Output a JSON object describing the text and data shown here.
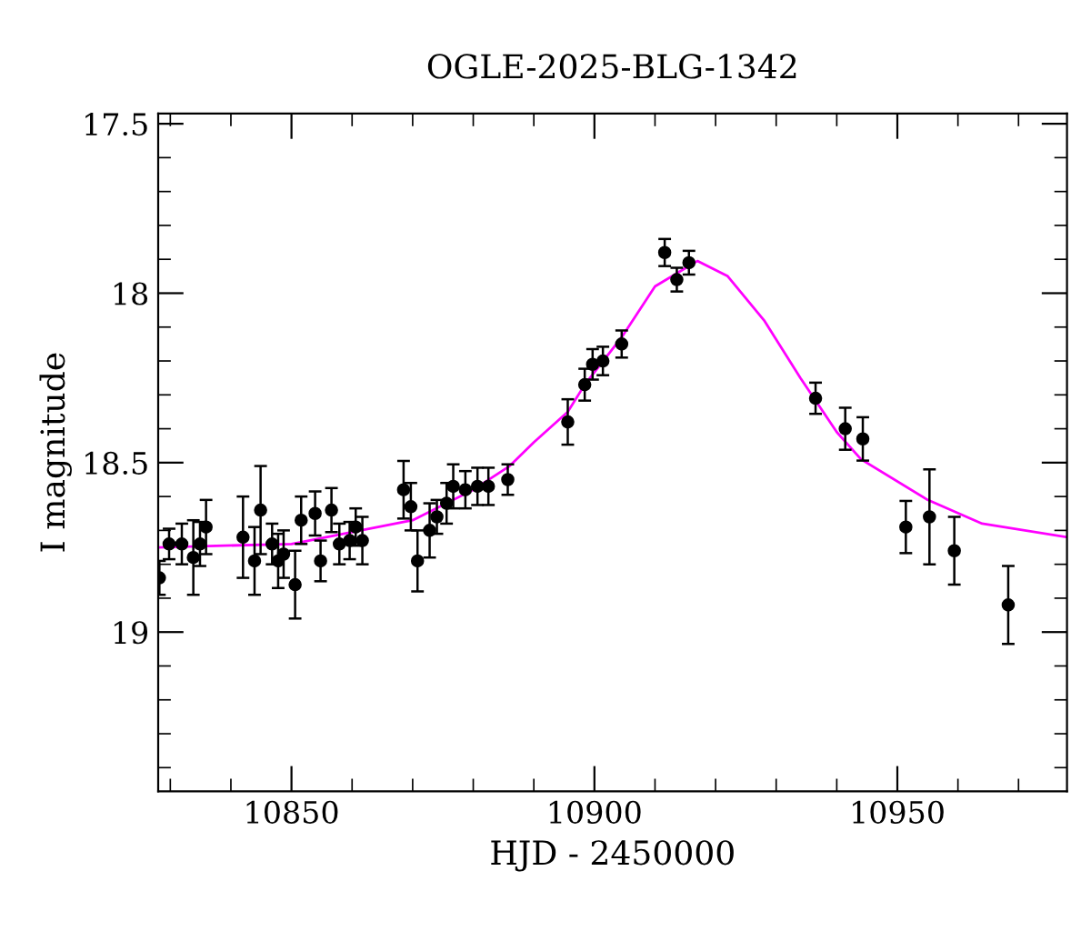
{
  "chart_data": {
    "type": "scatter",
    "title": "OGLE-2025-BLG-1342",
    "xlabel": "HJD - 2450000",
    "ylabel": "I magnitude",
    "xlim": [
      10828,
      10978
    ],
    "ylim": [
      19.47,
      17.47
    ],
    "xticks": [
      {
        "value": 10830,
        "label": null
      },
      {
        "value": 10840,
        "label": null
      },
      10850,
      {
        "value": 10860,
        "label": null
      },
      {
        "value": 10870,
        "label": null
      },
      {
        "value": 10880,
        "label": null
      },
      {
        "value": 10890,
        "label": null
      },
      10900,
      {
        "value": 10910,
        "label": null
      },
      {
        "value": 10920,
        "label": null
      },
      {
        "value": 10930,
        "label": null
      },
      {
        "value": 10940,
        "label": null
      },
      10950,
      {
        "value": 10960,
        "label": null
      },
      {
        "value": 10970,
        "label": null
      }
    ],
    "yticks": [
      17.5,
      {
        "value": 17.6,
        "label": null
      },
      {
        "value": 17.7,
        "label": null
      },
      {
        "value": 17.8,
        "label": null
      },
      {
        "value": 17.9,
        "label": null
      },
      18,
      {
        "value": 18.1,
        "label": null
      },
      {
        "value": 18.2,
        "label": null
      },
      {
        "value": 18.3,
        "label": null
      },
      {
        "value": 18.4,
        "label": null
      },
      18.5,
      {
        "value": 18.6,
        "label": null
      },
      {
        "value": 18.7,
        "label": null
      },
      {
        "value": 18.8,
        "label": null
      },
      {
        "value": 18.9,
        "label": null
      },
      19,
      {
        "value": 19.1,
        "label": null
      },
      {
        "value": 19.2,
        "label": null
      },
      {
        "value": 19.3,
        "label": null
      },
      {
        "value": 19.4,
        "label": null
      }
    ],
    "grid": false,
    "series": [
      {
        "type": "line",
        "color": "#ff00ff",
        "line_style": "solid",
        "marker": "none",
        "x": [
          10828,
          10850,
          10870,
          10880,
          10886,
          10890,
          10895.6,
          10898.4,
          10904.5,
          10910,
          10917,
          10922,
          10928,
          10934,
          10940,
          10944,
          10955,
          10964,
          10978
        ],
        "values": [
          18.75,
          18.74,
          18.67,
          18.58,
          18.51,
          18.44,
          18.35,
          18.27,
          18.13,
          17.98,
          17.905,
          17.95,
          18.08,
          18.25,
          18.41,
          18.49,
          18.61,
          18.68,
          18.72
        ]
      },
      {
        "color": "#000000",
        "marker": "circle",
        "x": [
          10828.2,
          10829.8,
          10831.9,
          10833.8,
          10834.9,
          10835.9,
          10842.0,
          10843.9,
          10844.9,
          10846.8,
          10847.8,
          10848.7,
          10850.6,
          10851.6,
          10853.9,
          10854.8,
          10856.6,
          10857.9,
          10859.6,
          10860.6,
          10861.7,
          10868.5,
          10869.7,
          10870.8,
          10872.8,
          10874.0,
          10875.6,
          10876.7,
          10878.7,
          10880.7,
          10882.5,
          10885.7,
          10895.6,
          10898.4,
          10899.7,
          10901.4,
          10904.5,
          10911.6,
          10913.6,
          10915.6,
          10936.5,
          10941.4,
          10944.3,
          10951.4,
          10955.3,
          10959.4,
          10968.3
        ],
        "values": [
          18.84,
          18.74,
          18.74,
          18.78,
          18.74,
          18.69,
          18.72,
          18.79,
          18.64,
          18.74,
          18.79,
          18.77,
          18.86,
          18.67,
          18.65,
          18.79,
          18.64,
          18.74,
          18.73,
          18.69,
          18.73,
          18.58,
          18.63,
          18.79,
          18.7,
          18.66,
          18.62,
          18.57,
          18.58,
          18.57,
          18.57,
          18.55,
          18.38,
          18.27,
          18.21,
          18.2,
          18.15,
          17.88,
          17.96,
          17.91,
          18.31,
          18.4,
          18.43,
          18.69,
          18.66,
          18.76,
          18.92
        ],
        "errors": [
          0.05,
          0.045,
          0.06,
          0.11,
          0.065,
          0.08,
          0.12,
          0.1,
          0.13,
          0.06,
          0.08,
          0.07,
          0.1,
          0.07,
          0.065,
          0.06,
          0.065,
          0.06,
          0.055,
          0.055,
          0.07,
          0.085,
          0.07,
          0.09,
          0.08,
          0.05,
          0.06,
          0.065,
          0.055,
          0.055,
          0.055,
          0.045,
          0.067,
          0.047,
          0.045,
          0.042,
          0.04,
          0.04,
          0.035,
          0.035,
          0.046,
          0.062,
          0.064,
          0.077,
          0.14,
          0.1,
          0.115
        ]
      }
    ]
  }
}
